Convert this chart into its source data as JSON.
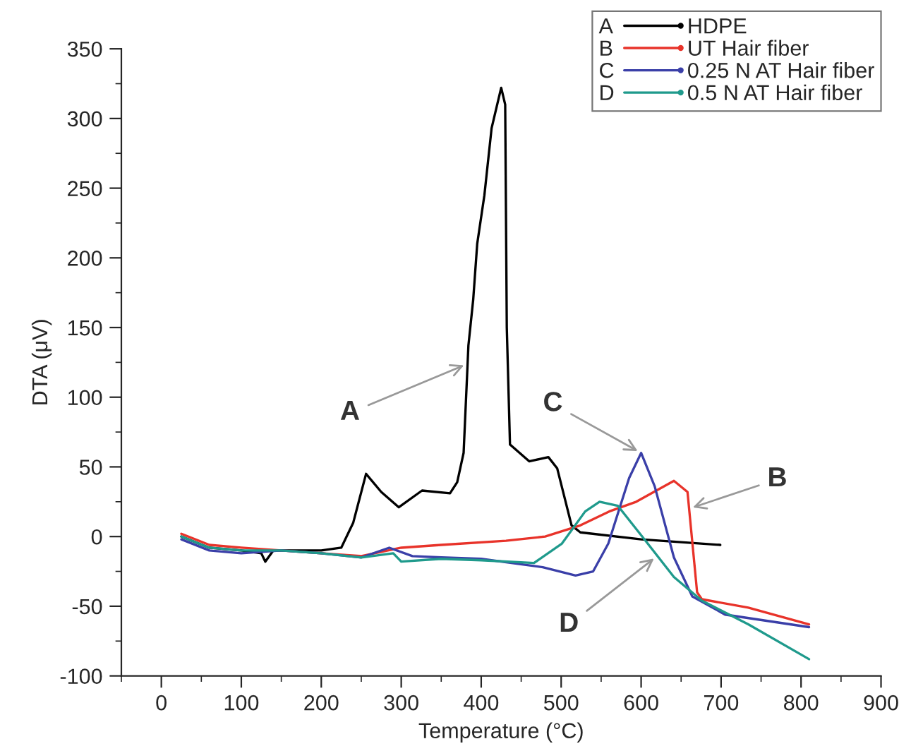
{
  "chart_data": {
    "type": "line",
    "xlabel": "Temperature (°C)",
    "ylabel": "DTA (μV)",
    "xlim": [
      -50,
      900
    ],
    "xticks": [
      0,
      100,
      200,
      300,
      400,
      500,
      600,
      700,
      800,
      900
    ],
    "ylim": [
      -100,
      350
    ],
    "yticks": [
      -100,
      -50,
      0,
      50,
      100,
      150,
      200,
      250,
      300,
      350
    ],
    "grid": false,
    "legend": "top right",
    "series": [
      {
        "name": "HDPE",
        "color": "#000000",
        "x": [
          25,
          60,
          100,
          125,
          130,
          140,
          200,
          225,
          240,
          256,
          275,
          297,
          326,
          361,
          370,
          378,
          384,
          390,
          395,
          404,
          413,
          420,
          425,
          430,
          432,
          436,
          460,
          484,
          495,
          513,
          524,
          600,
          699
        ],
        "values": [
          0,
          -8,
          -10,
          -12,
          -18,
          -10,
          -10,
          -8,
          10,
          45,
          32,
          21,
          33,
          31,
          39,
          60,
          137,
          170,
          210,
          245,
          293,
          310,
          322,
          310,
          150,
          66,
          54,
          57,
          49,
          8,
          3,
          -2,
          -6
        ]
      },
      {
        "name": "UT Hair fiber",
        "color": "#e8332a",
        "x": [
          25,
          60,
          100,
          150,
          200,
          250,
          300,
          350,
          431,
          480,
          524,
          560,
          594,
          641,
          658,
          670,
          676,
          734,
          810
        ],
        "values": [
          2,
          -6,
          -8,
          -10,
          -12,
          -14,
          -8,
          -6,
          -3,
          0,
          8,
          18,
          25,
          40,
          32,
          -40,
          -45,
          -51,
          -63
        ]
      },
      {
        "name": "0.25 N AT Hair fiber",
        "color": "#3a3fa8",
        "x": [
          25,
          60,
          100,
          150,
          200,
          250,
          285,
          314,
          350,
          400,
          477,
          518,
          540,
          559,
          585,
          600,
          617,
          641,
          664,
          705,
          810
        ],
        "values": [
          -2,
          -10,
          -12,
          -10,
          -12,
          -15,
          -8,
          -14,
          -15,
          -16,
          -22,
          -28,
          -25,
          -5,
          42,
          60,
          36,
          -15,
          -43,
          -56,
          -65
        ]
      },
      {
        "name": "0.5 N AT Hair fiber",
        "color": "#1f9a8c",
        "x": [
          25,
          60,
          100,
          150,
          200,
          250,
          290,
          300,
          350,
          400,
          466,
          501,
          530,
          548,
          571,
          600,
          641,
          676,
          734,
          810
        ],
        "values": [
          0,
          -8,
          -10,
          -10,
          -12,
          -15,
          -12,
          -18,
          -16,
          -17,
          -19,
          -5,
          18,
          25,
          22,
          1,
          -29,
          -46,
          -63,
          -88
        ]
      }
    ],
    "annotations": [
      {
        "text": "A",
        "x": 383,
        "y": 124
      },
      {
        "text": "B",
        "x": 660,
        "y": 20
      },
      {
        "text": "C",
        "x": 600,
        "y": 60
      },
      {
        "text": "D",
        "x": 620,
        "y": -14
      }
    ]
  }
}
